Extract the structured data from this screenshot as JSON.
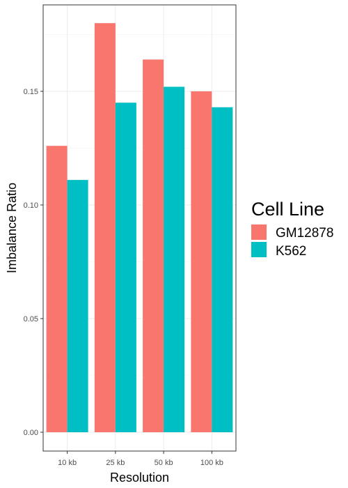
{
  "chart_data": {
    "type": "bar",
    "xlabel": "Resolution",
    "ylabel": "Imbalance Ratio",
    "categories": [
      "10 kb",
      "25 kb",
      "50 kb",
      "100 kb"
    ],
    "series": [
      {
        "name": "GM12878",
        "color": "#F8766D",
        "values": [
          0.126,
          0.18,
          0.164,
          0.15
        ]
      },
      {
        "name": "K562",
        "color": "#00BFC4",
        "values": [
          0.111,
          0.145,
          0.152,
          0.143
        ]
      }
    ],
    "ylim": [
      0,
      0.19
    ],
    "yticks": [
      0.0,
      0.05,
      0.1,
      0.15
    ],
    "ytick_labels": [
      "0.00",
      "0.05",
      "0.10",
      "0.15"
    ],
    "grid": true,
    "legend": {
      "title": "Cell Line",
      "position": "right"
    }
  }
}
